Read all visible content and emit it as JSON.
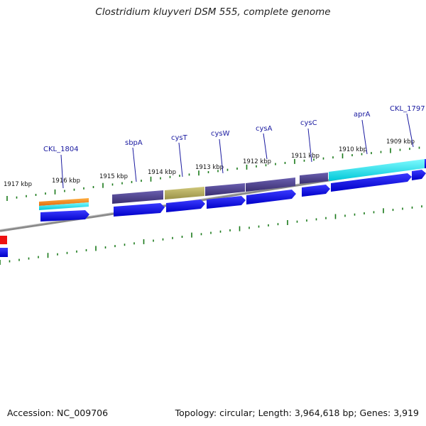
{
  "title": "Clostridium kluyveri DSM 555, complete genome",
  "footer": {
    "accession": "Accession: NC_009706",
    "summary": "Topology: circular; Length: 3,964,618 bp; Genes: 3,919"
  },
  "map": {
    "kbp_labels": [
      "1917 kbp",
      "1916 kbp",
      "1915 kbp",
      "1914 kbp",
      "1913 kbp",
      "1912 kbp",
      "1911 kbp",
      "1910 kbp",
      "1909 kbp"
    ],
    "gene_labels": [
      "CKL_1804",
      "sbpA",
      "cysT",
      "cysW",
      "cysA",
      "cysC",
      "aprA",
      "CKL_1797"
    ],
    "colors": {
      "backbone": "#8a8a8a",
      "tick": "#1a7a1a",
      "label": "#1a1aa0",
      "cds": "#0a0af0",
      "cyan": "#00e6f0",
      "orange": "#f08a1a",
      "purple": "#4a3f8c",
      "olive": "#b8b060",
      "red": "#ee1111"
    }
  }
}
